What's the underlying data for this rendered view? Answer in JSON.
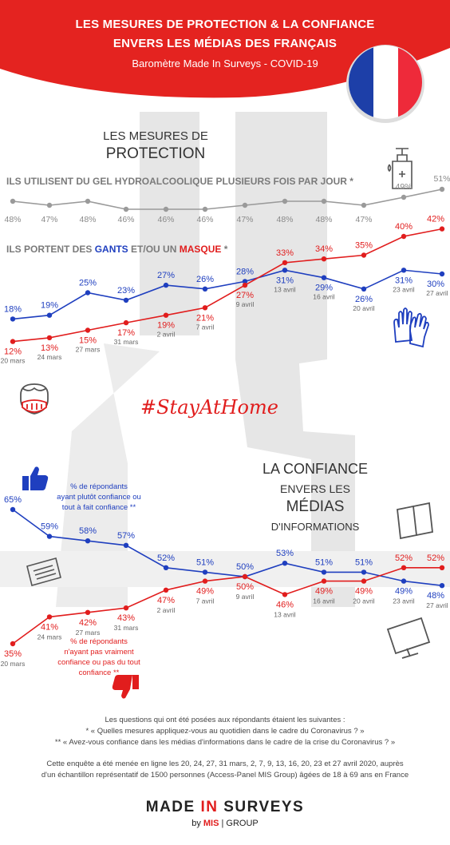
{
  "header": {
    "title_line1": "LES MESURES DE PROTECTION & LA CONFIANCE",
    "title_line2": "ENVERS LES MÉDIAS DES FRANÇAIS",
    "subtitle": "Baromètre Made In Surveys - COVID-19"
  },
  "section1": {
    "title_line1": "LES MESURES DE",
    "title_line2": "PROTECTION"
  },
  "section2": {
    "title_line1": "LA CONFIANCE",
    "title_line2": "ENVERS LES",
    "title_line3": "MÉDIAS",
    "title_line4": "D'INFORMATIONS"
  },
  "labels": {
    "gel_question": "ILS UTILISENT DU GEL HYDROALCOOLIQUE PLUSIEURS FOIS PAR JOUR *",
    "protect_prefix": "ILS PORTENT DES ",
    "protect_gants": "GANTS",
    "protect_mid": " ET/OU UN ",
    "protect_masque": "MASQUE",
    "protect_suffix": " *",
    "hashtag": "#StayAtHome",
    "trust_note_1": "% de répondants",
    "trust_note_2": "ayant plutôt confiance ou",
    "trust_note_3": "tout à fait confiance **",
    "distrust_note_1": "% de répondants",
    "distrust_note_2": "n'ayant pas vraiment",
    "distrust_note_3": "confiance ou pas du tout",
    "distrust_note_4": "confiance **"
  },
  "footer": {
    "line1": "Les questions qui ont été posées aux répondants étaient les suivantes :",
    "line2": "* « Quelles mesures appliquez-vous au quotidien dans le cadre du Coronavirus ? »",
    "line3": "** « Avez-vous confiance dans les médias d'informations dans le cadre de la crise du Coronavirus ? »",
    "line4": "Cette enquête a été menée en ligne les 20, 24, 27, 31 mars, 2, 7, 9, 13, 16, 20, 23 et 27 avril 2020, auprès",
    "line5": "d'un échantillon représentatif de 1500 personnes (Access-Panel MIS Group) âgées de 18 à 69 ans en France",
    "logo_part1": "MADE ",
    "logo_part2": "IN",
    "logo_part3": " SURVEYS",
    "logo_by": "by ",
    "logo_mis": "MIS",
    "logo_group": "| GROUP"
  },
  "colors": {
    "red": "#e11d1d",
    "blue": "#1f3fbf",
    "gray": "#9a9a9a",
    "header": "#e42320"
  },
  "chart_data": [
    {
      "type": "line",
      "title": "ILS UTILISENT DU GEL HYDROALCOOLIQUE PLUSIEURS FOIS PAR JOUR *",
      "x": [
        "20 mars",
        "24 mars",
        "27 mars",
        "31 mars",
        "2 avril",
        "7 avril",
        "9 avril",
        "13 avril",
        "16 avril",
        "20 avril",
        "23 avril",
        "27 avril"
      ],
      "series": [
        {
          "values": [
            48,
            47,
            48,
            46,
            46,
            46,
            47,
            48,
            48,
            47,
            49,
            51
          ]
        }
      ],
      "value_labels": [
        "48%",
        "47%",
        "48%",
        "46%",
        "46%",
        "46%",
        "47%",
        "48%",
        "48%",
        "47%",
        "49%",
        "51%"
      ]
    },
    {
      "type": "line",
      "title": "ILS PORTENT DES GANTS ET/OU UN MASQUE *",
      "x": [
        "20 mars",
        "24 mars",
        "27 mars",
        "31 mars",
        "2 avril",
        "7 avril",
        "9 avril",
        "13 avril",
        "16 avril",
        "20 avril",
        "23 avril",
        "27 avril"
      ],
      "series": [
        {
          "name": "GANTS",
          "color": "#1f3fbf",
          "values": [
            18,
            19,
            25,
            23,
            27,
            26,
            28,
            31,
            29,
            26,
            31,
            30
          ],
          "labels": [
            "18%",
            "19%",
            "25%",
            "23%",
            "27%",
            "26%",
            "28%",
            "31%",
            "29%",
            "26%",
            "31%",
            "30%"
          ]
        },
        {
          "name": "MASQUE",
          "color": "#e11d1d",
          "values": [
            12,
            13,
            15,
            17,
            19,
            21,
            27,
            33,
            34,
            35,
            40,
            42
          ],
          "labels": [
            "12%",
            "13%",
            "15%",
            "17%",
            "19%",
            "21%",
            "27%",
            "33%",
            "34%",
            "35%",
            "40%",
            "42%"
          ]
        }
      ]
    },
    {
      "type": "line",
      "x": [
        "20 mars",
        "24 mars",
        "27 mars",
        "31 mars",
        "2 avril",
        "7 avril",
        "9 avril",
        "13 avril",
        "16 avril",
        "20 avril",
        "23 avril",
        "27 avril"
      ],
      "series": [
        {
          "color": "#1f3fbf",
          "values": [
            65,
            59,
            58,
            57,
            52,
            51,
            50,
            53,
            51,
            51,
            49,
            48
          ],
          "labels": [
            "65%",
            "59%",
            "58%",
            "57%",
            "52%",
            "51%",
            "50%",
            "53%",
            "51%",
            "51%",
            "49%",
            "48%"
          ]
        },
        {
          "color": "#e11d1d",
          "values": [
            35,
            41,
            42,
            43,
            47,
            49,
            50,
            46,
            49,
            49,
            52,
            52
          ],
          "labels": [
            "35%",
            "41%",
            "42%",
            "43%",
            "47%",
            "49%",
            "50%",
            "46%",
            "49%",
            "49%",
            "52%",
            "52%"
          ]
        }
      ]
    }
  ]
}
